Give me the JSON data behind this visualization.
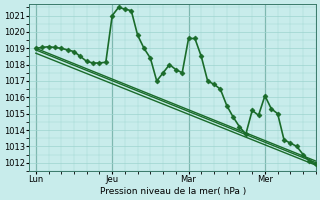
{
  "background_color": "#c8eceb",
  "grid_color": "#9dd4cf",
  "line_color": "#1a6b2a",
  "ylim": [
    1011.5,
    1021.7
  ],
  "yticks": [
    1012,
    1013,
    1014,
    1015,
    1016,
    1017,
    1018,
    1019,
    1020,
    1021
  ],
  "xlabel": "Pression niveau de la mer( hPa )",
  "xtick_labels": [
    "Lun",
    "Jeu",
    "Mar",
    "Mer"
  ],
  "xtick_positions": [
    0,
    24,
    48,
    72
  ],
  "vline_positions": [
    0,
    24,
    48,
    72
  ],
  "xlim": [
    -2,
    88
  ],
  "wavy": {
    "x": [
      0,
      2,
      4,
      6,
      8,
      10,
      12,
      14,
      16,
      18,
      20,
      22,
      24,
      26,
      28,
      30,
      32,
      34,
      36,
      38,
      40,
      42,
      44,
      46,
      48,
      50,
      52,
      54,
      56,
      58,
      60,
      62,
      64,
      66,
      68,
      70,
      72,
      74,
      76,
      78,
      80,
      82,
      84,
      86,
      88
    ],
    "y": [
      1019.0,
      1019.05,
      1019.1,
      1019.05,
      1019.0,
      1018.9,
      1018.8,
      1018.5,
      1018.2,
      1018.1,
      1018.1,
      1018.15,
      1021.0,
      1021.5,
      1021.4,
      1021.3,
      1019.8,
      1019.0,
      1018.4,
      1017.0,
      1017.5,
      1018.0,
      1017.7,
      1017.5,
      1019.6,
      1019.6,
      1018.5,
      1017.0,
      1016.8,
      1016.5,
      1015.5,
      1014.8,
      1014.2,
      1013.75,
      1015.2,
      1014.9,
      1016.1,
      1015.3,
      1015.0,
      1013.4,
      1013.2,
      1013.0,
      1012.5,
      1012.1,
      1011.9
    ],
    "lw": 1.2,
    "marker": "D",
    "ms": 2.5
  },
  "diag_lines": [
    {
      "x": [
        0,
        88
      ],
      "y": [
        1019.0,
        1012.1
      ]
    },
    {
      "x": [
        0,
        88
      ],
      "y": [
        1018.9,
        1012.0
      ]
    },
    {
      "x": [
        0,
        88
      ],
      "y": [
        1018.7,
        1011.85
      ]
    }
  ],
  "diag_lw": 1.0
}
